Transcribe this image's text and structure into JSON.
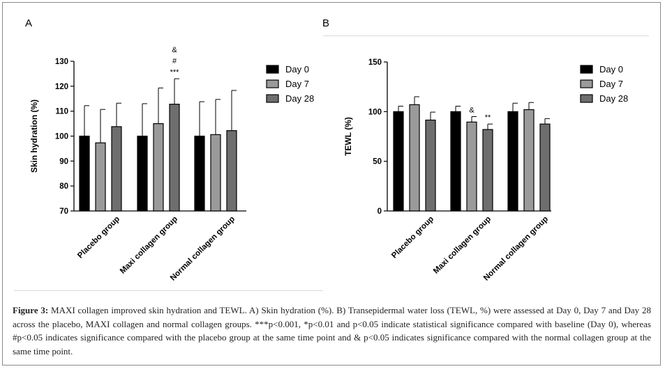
{
  "panels": {
    "a_label": "A",
    "b_label": "B"
  },
  "colors": {
    "day0": "#000000",
    "day7": "#9a9a9a",
    "day28": "#6e6e6e"
  },
  "chart_data": [
    {
      "type": "bar",
      "panel": "A",
      "ylabel": "Skin hydration (%)",
      "ylim": [
        70,
        130
      ],
      "yticks": [
        70,
        80,
        90,
        100,
        110,
        120,
        130
      ],
      "categories": [
        "Placebo group",
        "Maxi collagen group",
        "Normal collagen group"
      ],
      "series": [
        {
          "name": "Day 0",
          "values": [
            100,
            100,
            100
          ],
          "errors": [
            12.2,
            13,
            13.8
          ]
        },
        {
          "name": "Day 7",
          "values": [
            97.3,
            105,
            100.6
          ],
          "errors": [
            13.4,
            14.3,
            14.1
          ]
        },
        {
          "name": "Day 28",
          "values": [
            103.8,
            112.8,
            102.2
          ],
          "errors": [
            9.4,
            10.2,
            16.1
          ]
        }
      ],
      "annotations": [
        {
          "category": 1,
          "series": 2,
          "lines": [
            "&",
            "#",
            "***"
          ]
        }
      ],
      "legend": "top-right"
    },
    {
      "type": "bar",
      "panel": "B",
      "ylabel": "TEWL (%)",
      "ylim": [
        0,
        150
      ],
      "yticks": [
        0,
        50,
        100,
        150
      ],
      "categories": [
        "Placebo group",
        "Maxi collagen group",
        "Normal collagen group"
      ],
      "series": [
        {
          "name": "Day 0",
          "values": [
            100,
            100,
            100
          ],
          "errors": [
            5.5,
            5.5,
            8.5
          ]
        },
        {
          "name": "Day 7",
          "values": [
            107,
            89.5,
            102
          ],
          "errors": [
            8,
            5.5,
            7.2
          ]
        },
        {
          "name": "Day 28",
          "values": [
            91.5,
            82,
            87.5
          ],
          "errors": [
            8,
            5.5,
            5.5
          ]
        }
      ],
      "annotations": [
        {
          "category": 1,
          "series": 1,
          "lines": [
            "&"
          ]
        },
        {
          "category": 1,
          "series": 2,
          "lines": [
            "**"
          ]
        }
      ],
      "legend": "top-right"
    }
  ],
  "caption": {
    "label": "Figure 3:",
    "text": " MAXI collagen improved skin hydration and TEWL. A) Skin hydration (%). B) Transepidermal water loss (TEWL, %) were assessed at Day 0, Day 7 and Day 28 across the placebo, MAXI collagen and normal collagen groups. ***p<0.001, *p<0.01 and p<0.05 indicate statistical significance compared with baseline (Day 0), whereas #p<0.05 indicates significance compared with the placebo group at the same time point and & p<0.05 indicates significance compared with the normal collagen group at the same time point."
  }
}
